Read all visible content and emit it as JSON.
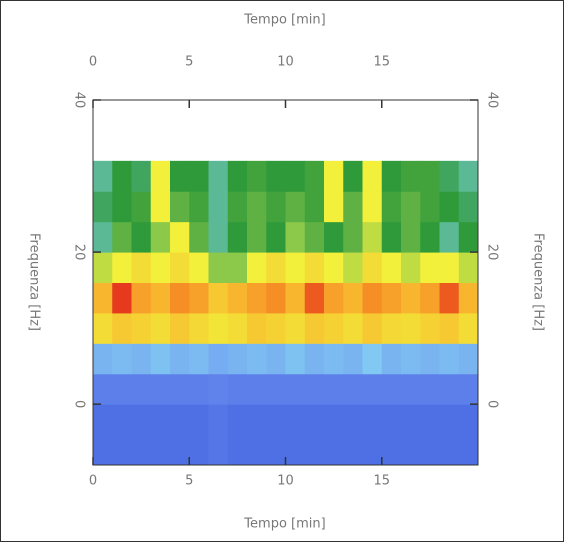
{
  "chart_data": {
    "type": "heatmap",
    "x_label": "Tempo [min]",
    "x2_label": "Tempo [min]",
    "y_label": "Frequenza [Hz]",
    "y2_label": "Frequenza [Hz]",
    "xlim": [
      0,
      20
    ],
    "xticks": [
      0,
      5,
      10,
      15
    ],
    "ylim": [
      -8,
      40
    ],
    "yticks": [
      0,
      20,
      40
    ],
    "x_bins": [
      0,
      1,
      2,
      3,
      4,
      5,
      6,
      7,
      8,
      9,
      10,
      11,
      12,
      13,
      14,
      15,
      16,
      17,
      18,
      19,
      20
    ],
    "y_bins": [
      -8,
      -4,
      0,
      4,
      8,
      12,
      16,
      20,
      24,
      28,
      32,
      36,
      40
    ],
    "clim": [
      0,
      10
    ],
    "colorscale": [
      [
        0,
        "#2f50d8"
      ],
      [
        2,
        "#6c8ff0"
      ],
      [
        3,
        "#86d8f2"
      ],
      [
        4,
        "#2f9a3a"
      ],
      [
        5,
        "#8cc84a"
      ],
      [
        6,
        "#f2f03a"
      ],
      [
        7.5,
        "#f8b52e"
      ],
      [
        9,
        "#f57a22"
      ],
      [
        10,
        "#e53a1e"
      ]
    ],
    "z": [
      [
        1,
        1,
        1,
        1,
        1,
        1,
        1.2,
        1,
        1,
        1,
        1,
        1,
        1,
        1,
        1,
        1,
        1,
        1,
        1,
        1
      ],
      [
        1,
        1,
        1,
        1,
        1,
        1,
        1.2,
        1,
        1,
        1,
        1,
        1,
        1,
        1,
        1,
        1,
        1,
        1,
        1,
        1
      ],
      [
        1.5,
        1.5,
        1.5,
        1.5,
        1.5,
        1.5,
        1.6,
        1.5,
        1.5,
        1.5,
        1.5,
        1.5,
        1.5,
        1.5,
        1.5,
        1.5,
        1.5,
        1.5,
        1.5,
        1.5
      ],
      [
        2.5,
        2.6,
        2.5,
        2.7,
        2.5,
        2.6,
        2.4,
        2.5,
        2.6,
        2.5,
        2.7,
        2.5,
        2.6,
        2.5,
        2.8,
        2.5,
        2.6,
        2.5,
        2.6,
        2.5
      ],
      [
        6.5,
        7,
        6.8,
        6.5,
        7,
        6.6,
        6.3,
        6.5,
        7,
        6.8,
        6.5,
        7,
        6.8,
        6.5,
        7,
        6.6,
        6.5,
        6.8,
        7,
        6.5
      ],
      [
        7.5,
        10,
        8,
        7.5,
        8.5,
        8,
        7,
        7.5,
        8,
        8.5,
        7.5,
        9.5,
        8,
        7.5,
        8.5,
        8,
        7.5,
        8,
        9.5,
        7.5
      ],
      [
        5.5,
        6,
        6.5,
        6,
        6.5,
        6,
        5,
        5,
        6,
        6.5,
        6,
        6.5,
        6,
        5.5,
        6.5,
        6,
        5.5,
        6,
        6,
        5.5
      ],
      [
        3.5,
        4.5,
        4,
        5,
        6,
        4.5,
        3.5,
        4,
        4.5,
        4,
        5,
        4.5,
        4,
        4.5,
        5.5,
        4,
        4.5,
        4,
        3.5,
        4
      ],
      [
        3.8,
        4,
        4.2,
        6,
        4.5,
        4.2,
        3.5,
        4.2,
        4.5,
        4.2,
        4.5,
        4.2,
        6,
        4.5,
        6,
        4.2,
        4.5,
        4.2,
        4,
        3.8
      ],
      [
        3.5,
        4,
        3.8,
        6,
        4,
        4,
        3.5,
        4,
        4.2,
        4,
        4,
        4.2,
        6,
        4,
        6,
        4,
        4.2,
        4.2,
        3.8,
        3.5
      ],
      [
        null,
        null,
        null,
        null,
        null,
        null,
        null,
        null,
        null,
        null,
        null,
        null,
        null,
        null,
        null,
        null,
        null,
        null,
        null,
        null
      ],
      [
        null,
        null,
        null,
        null,
        null,
        null,
        null,
        null,
        null,
        null,
        null,
        null,
        null,
        null,
        null,
        null,
        null,
        null,
        null,
        null
      ]
    ]
  }
}
